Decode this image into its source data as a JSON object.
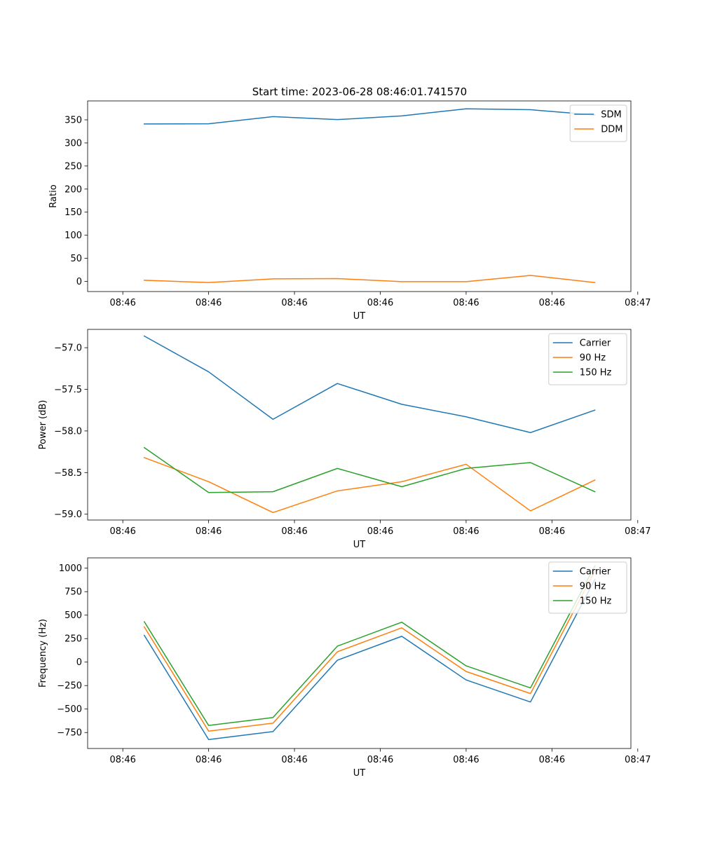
{
  "figure": {
    "title": "Start time: 2023-06-28 08:46:01.741570"
  },
  "chart_data": [
    {
      "type": "line",
      "title": "Start time: 2023-06-28 08:46:01.741570",
      "xlabel": "UT",
      "ylabel": "Ratio",
      "x": [
        "08:46:06.5",
        "08:46:08.0",
        "08:46:09.5",
        "08:46:11.0",
        "08:46:12.5",
        "08:46:14.0",
        "08:46:15.5",
        "08:46:17.0"
      ],
      "xtick_labels": [
        "08:46",
        "08:46",
        "08:46",
        "08:46",
        "08:46",
        "08:46",
        "08:47"
      ],
      "ylim": [
        -22,
        391
      ],
      "yticks": [
        0,
        50,
        100,
        150,
        200,
        250,
        300,
        350
      ],
      "legend": "top-right",
      "grid": false,
      "series": [
        {
          "name": "SDM",
          "color": "#1f77b4",
          "values": [
            341,
            341.5,
            357,
            350.5,
            358.5,
            374,
            372,
            360.5
          ]
        },
        {
          "name": "DDM",
          "color": "#ff7f0e",
          "values": [
            2.5,
            -2.5,
            5.5,
            6,
            -0.5,
            -0.5,
            13,
            -2.5
          ]
        }
      ]
    },
    {
      "type": "line",
      "xlabel": "UT",
      "ylabel": "Power (dB)",
      "x": [
        "08:46:06.5",
        "08:46:08.0",
        "08:46:09.5",
        "08:46:11.0",
        "08:46:12.5",
        "08:46:14.0",
        "08:46:15.5",
        "08:46:17.0"
      ],
      "xtick_labels": [
        "08:46",
        "08:46",
        "08:46",
        "08:46",
        "08:46",
        "08:46",
        "08:47"
      ],
      "ylim": [
        -59.07,
        -56.78
      ],
      "yticks": [
        -59.0,
        -58.5,
        -58.0,
        -57.5,
        -57.0
      ],
      "ytick_labels": [
        "−59.0",
        "−58.5",
        "−58.0",
        "−57.5",
        "−57.0"
      ],
      "legend": "top-right",
      "grid": false,
      "series": [
        {
          "name": "Carrier",
          "color": "#1f77b4",
          "values": [
            -56.86,
            -57.29,
            -57.86,
            -57.43,
            -57.68,
            -57.83,
            -58.02,
            -57.75
          ]
        },
        {
          "name": "90 Hz",
          "color": "#ff7f0e",
          "values": [
            -58.32,
            -58.61,
            -58.98,
            -58.72,
            -58.61,
            -58.4,
            -58.96,
            -58.59
          ]
        },
        {
          "name": "150 Hz",
          "color": "#2ca02c",
          "values": [
            -58.2,
            -58.74,
            -58.73,
            -58.45,
            -58.67,
            -58.45,
            -58.38,
            -58.73
          ]
        }
      ]
    },
    {
      "type": "line",
      "xlabel": "UT",
      "ylabel": "Frequency (Hz)",
      "x": [
        "08:46:06.5",
        "08:46:08.0",
        "08:46:09.5",
        "08:46:11.0",
        "08:46:12.5",
        "08:46:14.0",
        "08:46:15.5",
        "08:46:17.0"
      ],
      "xtick_labels": [
        "08:46",
        "08:46",
        "08:46",
        "08:46",
        "08:46",
        "08:46",
        "08:47"
      ],
      "ylim": [
        -920,
        1110
      ],
      "yticks": [
        -750,
        -500,
        -250,
        0,
        250,
        500,
        750,
        1000
      ],
      "ytick_labels": [
        "−750",
        "−500",
        "−250",
        "0",
        "250",
        "500",
        "750",
        "1000"
      ],
      "legend": "top-right",
      "grid": false,
      "series": [
        {
          "name": "Carrier",
          "color": "#1f77b4",
          "values": [
            285,
            -825,
            -740,
            20,
            275,
            -190,
            -425,
            880
          ]
        },
        {
          "name": "90 Hz",
          "color": "#ff7f0e",
          "values": [
            375,
            -735,
            -650,
            110,
            365,
            -100,
            -335,
            970
          ]
        },
        {
          "name": "150 Hz",
          "color": "#2ca02c",
          "values": [
            430,
            -675,
            -590,
            170,
            425,
            -40,
            -275,
            1025
          ]
        }
      ]
    }
  ]
}
